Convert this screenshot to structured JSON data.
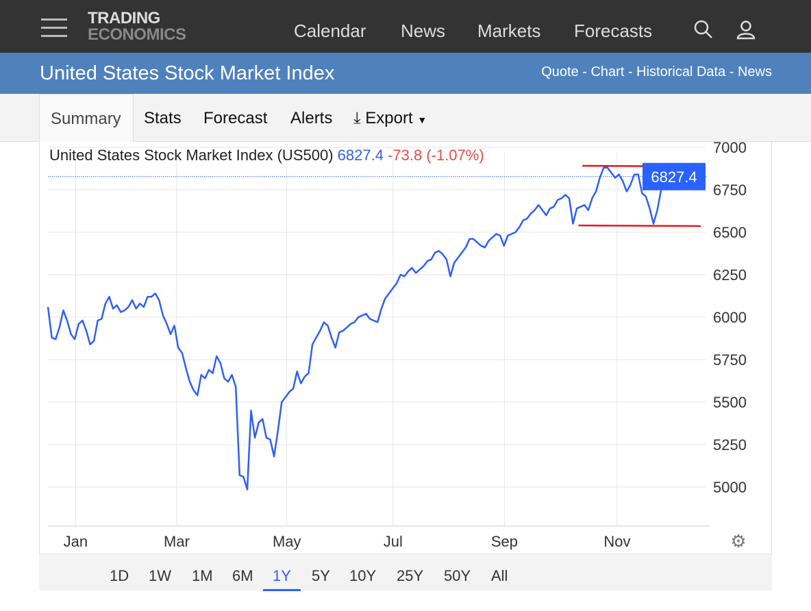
{
  "header": {
    "logo_line1": "TRADING",
    "logo_line2": "ECONOMICS",
    "nav": [
      "Calendar",
      "News",
      "Markets",
      "Forecasts"
    ]
  },
  "titlebar": {
    "title": "United States Stock Market Index",
    "links": "Quote - Chart - Historical Data - News"
  },
  "tabs": [
    "Summary",
    "Stats",
    "Forecast",
    "Alerts",
    "Export"
  ],
  "ranges": [
    "1D",
    "1W",
    "1M",
    "6M",
    "1Y",
    "5Y",
    "10Y",
    "25Y",
    "50Y",
    "All"
  ],
  "active_range": "1Y",
  "colors": {
    "line": "#2f5ff5",
    "trend": "#e8141c",
    "header": "#333333",
    "titlebar": "#4f81bd",
    "label": "#2962ff"
  },
  "chart_data": {
    "type": "line",
    "title": "United States Stock Market Index (US500)",
    "title_value": "6827.4",
    "title_change": "-73.8 (-1.07%)",
    "last_value_label": "6827.4",
    "last_value": 6827.4,
    "ylim": [
      4750,
      7100
    ],
    "yticks": [
      5000,
      5250,
      5500,
      5750,
      6000,
      6250,
      6500,
      6750,
      7000
    ],
    "xticks": [
      {
        "label": "Jan",
        "pos": 0.043
      },
      {
        "label": "Mar",
        "pos": 0.2
      },
      {
        "label": "May",
        "pos": 0.371
      },
      {
        "label": "Jul",
        "pos": 0.536
      },
      {
        "label": "Sep",
        "pos": 0.709
      },
      {
        "label": "Nov",
        "pos": 0.884
      }
    ],
    "series": [
      {
        "name": "US500",
        "values": [
          6060,
          5880,
          5870,
          5940,
          6040,
          5980,
          5900,
          5870,
          5960,
          5980,
          5920,
          5840,
          5860,
          5980,
          5990,
          6080,
          6120,
          6050,
          6070,
          6030,
          6040,
          6060,
          6100,
          6050,
          6080,
          6060,
          6120,
          6120,
          6140,
          6100,
          6010,
          5960,
          5900,
          5950,
          5820,
          5790,
          5700,
          5620,
          5570,
          5540,
          5660,
          5640,
          5690,
          5670,
          5770,
          5730,
          5640,
          5620,
          5660,
          5590,
          5070,
          5060,
          4985,
          5450,
          5290,
          5380,
          5400,
          5290,
          5280,
          5180,
          5330,
          5500,
          5530,
          5560,
          5580,
          5680,
          5610,
          5650,
          5670,
          5840,
          5880,
          5920,
          5970,
          5950,
          5880,
          5820,
          5910,
          5920,
          5940,
          5960,
          5970,
          6000,
          6010,
          6020,
          5990,
          5980,
          5970,
          6050,
          6110,
          6140,
          6170,
          6200,
          6250,
          6240,
          6270,
          6290,
          6260,
          6280,
          6300,
          6330,
          6340,
          6380,
          6390,
          6370,
          6340,
          6240,
          6320,
          6350,
          6380,
          6410,
          6460,
          6460,
          6440,
          6420,
          6410,
          6450,
          6470,
          6490,
          6480,
          6420,
          6480,
          6490,
          6500,
          6530,
          6570,
          6580,
          6610,
          6630,
          6660,
          6630,
          6600,
          6640,
          6650,
          6690,
          6700,
          6720,
          6700,
          6550,
          6640,
          6650,
          6660,
          6630,
          6700,
          6740,
          6820,
          6880,
          6880,
          6850,
          6820,
          6840,
          6800,
          6740,
          6780,
          6840,
          6840,
          6730,
          6710,
          6640,
          6550,
          6630,
          6750,
          6830,
          6810,
          6840,
          6850,
          6860,
          6850,
          6900,
          6827.4
        ]
      }
    ],
    "trendlines": [
      {
        "from": [
          0.83,
          6891
        ],
        "to": [
          1.012,
          6887
        ]
      },
      {
        "from": [
          0.824,
          6540
        ],
        "to": [
          1.014,
          6536
        ]
      }
    ]
  }
}
